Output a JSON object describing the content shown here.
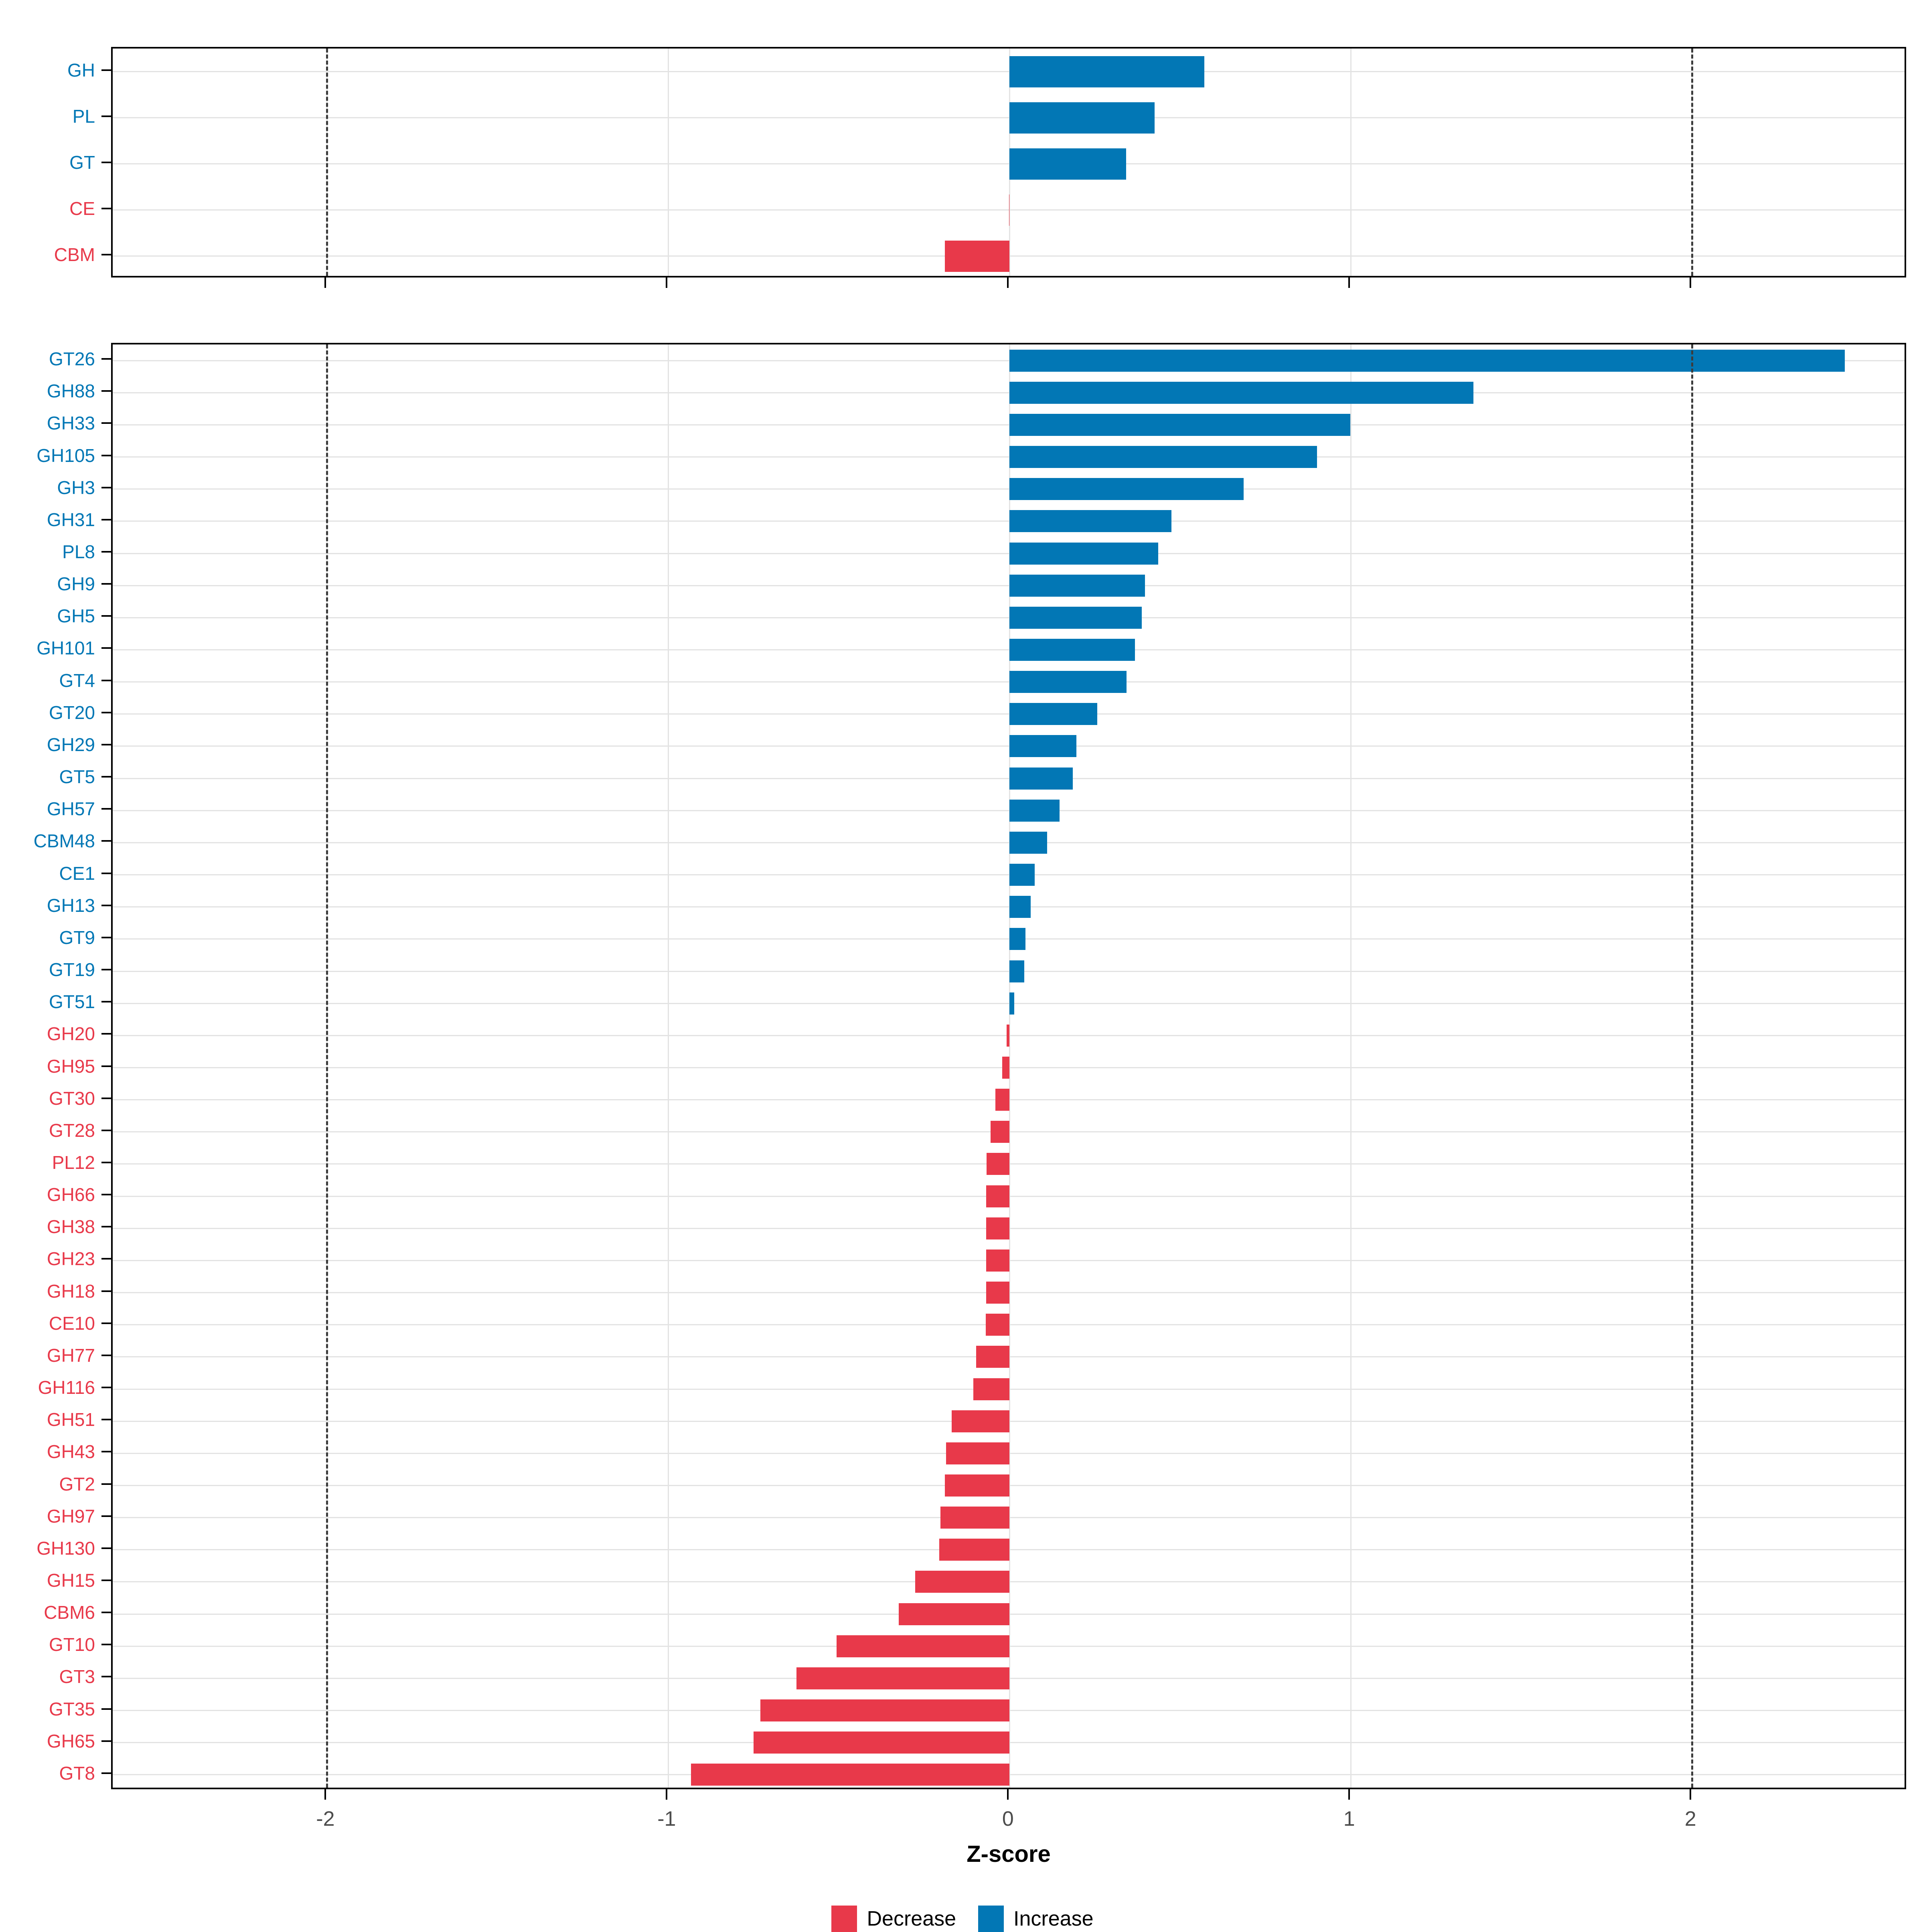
{
  "chart_data": {
    "type": "bar",
    "orientation": "horizontal",
    "title": "",
    "xlabel": "Z-score",
    "x_range": [
      -2.628,
      2.632
    ],
    "x_ticks": [
      -2,
      -1,
      0,
      1,
      2
    ],
    "x_tick_labels": [
      "-2",
      "-1",
      "0",
      "1",
      "2"
    ],
    "dashed_lines": [
      -2,
      2
    ],
    "grid": true,
    "legend_position": "bottom",
    "colors": {
      "increase": "#0277b5",
      "decrease": "#e8394a",
      "gridline": "#e3e3e3",
      "dashed_line": "#3c3c3c",
      "tick_label": "#4d4d4d"
    },
    "legend": [
      {
        "label": "Decrease",
        "color": "#e8394a"
      },
      {
        "label": "Increase",
        "color": "#0277b5"
      }
    ],
    "panels": [
      {
        "name": "summary",
        "categories": [
          "GH",
          "PL",
          "GT",
          "CE",
          "CBM"
        ],
        "values": [
          0.571,
          0.425,
          0.342,
          -0.002,
          -0.19
        ]
      },
      {
        "name": "families",
        "categories": [
          "GT26",
          "GH88",
          "GH33",
          "GH105",
          "GH3",
          "GH31",
          "PL8",
          "GH9",
          "GH5",
          "GH101",
          "GT4",
          "GT20",
          "GH29",
          "GT5",
          "GH57",
          "CBM48",
          "CE1",
          "GH13",
          "GT9",
          "GT19",
          "GT51",
          "GH20",
          "GH95",
          "GT30",
          "GT28",
          "PL12",
          "GH66",
          "GH38",
          "GH23",
          "GH18",
          "CE10",
          "GH77",
          "GH116",
          "GH51",
          "GH43",
          "GT2",
          "GH97",
          "GH130",
          "GH15",
          "CBM6",
          "GT10",
          "GT3",
          "GT35",
          "GH65",
          "GT8"
        ],
        "values": [
          2.447,
          1.359,
          0.998,
          0.901,
          0.686,
          0.475,
          0.436,
          0.397,
          0.387,
          0.368,
          0.343,
          0.257,
          0.196,
          0.185,
          0.147,
          0.11,
          0.074,
          0.062,
          0.047,
          0.043,
          0.014,
          -0.008,
          -0.022,
          -0.042,
          -0.055,
          -0.067,
          -0.068,
          -0.068,
          -0.069,
          -0.069,
          -0.07,
          -0.098,
          -0.106,
          -0.169,
          -0.186,
          -0.189,
          -0.203,
          -0.206,
          -0.276,
          -0.325,
          -0.507,
          -0.624,
          -0.73,
          -0.75,
          -0.934
        ]
      }
    ]
  }
}
